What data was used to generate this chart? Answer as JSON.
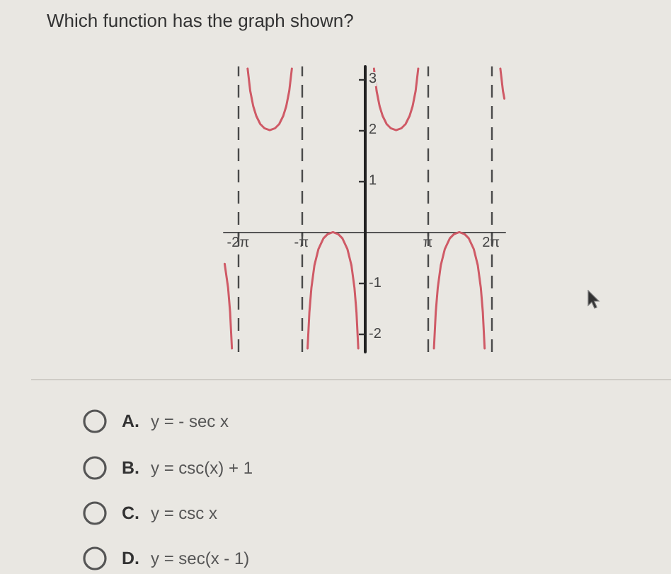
{
  "chart_data": {
    "type": "line",
    "title": "Which function has the graph shown?",
    "series": [
      {
        "color": "#cf5a66",
        "x": [
          -6.95,
          -6.78,
          -6.68,
          -6.59,
          -6.2832,
          -5.81,
          -5.68,
          -5.53,
          -5.38,
          -5.18,
          -4.98,
          -4.71,
          -4.44,
          -4.24,
          -4.04,
          -3.89,
          -3.74,
          -3.61,
          -3.1416,
          -2.83,
          -2.74,
          -2.64,
          -2.49,
          -2.29,
          -2.04,
          -1.84,
          -1.57,
          -1.3,
          -1.1,
          -0.85,
          -0.65,
          -0.5,
          -0.4,
          -0.31,
          0,
          0.47,
          0.6,
          0.75,
          0.9,
          1.1,
          1.3,
          1.57,
          1.84,
          2.04,
          2.24,
          2.39,
          2.54,
          2.67,
          3.1416,
          3.45,
          3.54,
          3.64,
          3.79,
          3.99,
          4.24,
          4.44,
          4.71,
          4.98,
          5.18,
          5.43,
          5.63,
          5.78,
          5.88,
          5.97,
          6.2832,
          6.75,
          6.88,
          6.95
        ],
        "values": [
          -0.62,
          -1.09,
          -1.57,
          -2.28,
          null,
          3.21,
          2.77,
          2.47,
          2.28,
          2.12,
          2.04,
          2.0,
          2.04,
          2.12,
          2.28,
          2.47,
          2.77,
          3.21,
          null,
          -2.28,
          -1.57,
          -1.09,
          -0.65,
          -0.33,
          -0.12,
          -0.04,
          0,
          -0.04,
          -0.12,
          -0.33,
          -0.65,
          -1.09,
          -1.57,
          -2.28,
          null,
          3.21,
          2.77,
          2.47,
          2.28,
          2.12,
          2.04,
          2.0,
          2.04,
          2.12,
          2.28,
          2.47,
          2.77,
          3.21,
          null,
          -2.28,
          -1.57,
          -1.09,
          -0.65,
          -0.33,
          -0.12,
          -0.04,
          0,
          -0.04,
          -0.12,
          -0.33,
          -0.65,
          -1.09,
          -1.57,
          -2.28,
          null,
          3.21,
          2.77,
          2.62
        ]
      }
    ],
    "xlim": [
      -7,
      7
    ],
    "xticks": [
      {
        "value": -6.2832,
        "label": "-2π"
      },
      {
        "value": -3.1416,
        "label": "-π"
      },
      {
        "value": 3.1416,
        "label": "π"
      },
      {
        "value": 6.2832,
        "label": "2π"
      }
    ],
    "ylim": [
      -2.35,
      3.25
    ],
    "yticks": [
      -2,
      -1,
      1,
      2,
      3
    ],
    "ref_lines": [
      {
        "axis": "x",
        "value": -6.2832,
        "line_style": "dashed",
        "color": "#4a4a4a"
      },
      {
        "axis": "x",
        "value": -3.1416,
        "line_style": "dashed",
        "color": "#4a4a4a"
      },
      {
        "axis": "x",
        "value": 3.1416,
        "line_style": "dashed",
        "color": "#4a4a4a"
      },
      {
        "axis": "x",
        "value": 6.2832,
        "line_style": "dashed",
        "color": "#4a4a4a"
      }
    ],
    "marker": "none",
    "annotations": [
      "A. y = - sec x",
      "B. y = csc(x) + 1",
      "C. y = csc x",
      "D. y = sec(x - 1)"
    ]
  }
}
